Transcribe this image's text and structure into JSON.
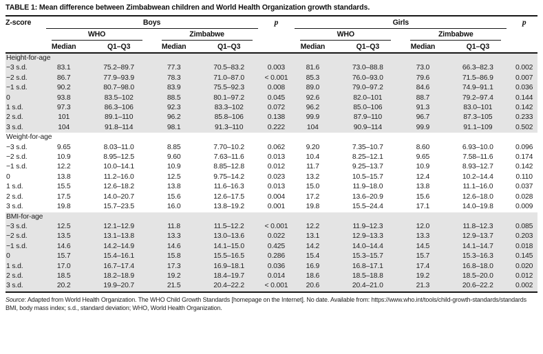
{
  "page": {
    "title": "TABLE 1: Mean difference between Zimbabwean children and World Health Organization growth standards."
  },
  "table": {
    "header": {
      "zscore_label": "Z-score",
      "boys_label": "Boys",
      "girls_label": "Girls",
      "p_label": "p",
      "who_label": "WHO",
      "zimbabwe_label": "Zimbabwe",
      "median_label": "Median",
      "q1q3_label": "Q1–Q3"
    },
    "sections": [
      {
        "label": "Height-for-age",
        "shaded": true,
        "rows": [
          {
            "z": "−3 s.d.",
            "cells": [
              "83.1",
              "75.2–89.7",
              "77.3",
              "70.5–83.2",
              "0.003",
              "81.6",
              "73.0–88.8",
              "73.0",
              "66.3–82.3",
              "0.002"
            ]
          },
          {
            "z": "−2 s.d.",
            "cells": [
              "86.7",
              "77.9–93.9",
              "78.3",
              "71.0–87.0",
              "< 0.001",
              "85.3",
              "76.0–93.0",
              "79.6",
              "71.5–86.9",
              "0.007"
            ]
          },
          {
            "z": "−1 s.d.",
            "cells": [
              "90.2",
              "80.7–98.0",
              "83.9",
              "75.5–92.3",
              "0.008",
              "89.0",
              "79.0–97.2",
              "84.6",
              "74.9–91.1",
              "0.036"
            ]
          },
          {
            "z": "0",
            "cells": [
              "93.8",
              "83.5–102",
              "88.5",
              "80.1–97.2",
              "0.045",
              "92.6",
              "82.0–101",
              "88.7",
              "79.2–97.4",
              "0.144"
            ]
          },
          {
            "z": "1 s.d.",
            "cells": [
              "97.3",
              "86.3–106",
              "92.3",
              "83.3–102",
              "0.072",
              "96.2",
              "85.0–106",
              "91.3",
              "83.0–101",
              "0.142"
            ]
          },
          {
            "z": "2 s.d.",
            "cells": [
              "101",
              "89.1–110",
              "96.2",
              "85.8–106",
              "0.138",
              "99.9",
              "87.9–110",
              "96.7",
              "87.3–105",
              "0.233"
            ]
          },
          {
            "z": "3 s.d.",
            "cells": [
              "104",
              "91.8–114",
              "98.1",
              "91.3–110",
              "0.222",
              "104",
              "90.9–114",
              "99.9",
              "91.1–109",
              "0.502"
            ]
          }
        ]
      },
      {
        "label": "Weight-for-age",
        "shaded": false,
        "rows": [
          {
            "z": "−3 s.d.",
            "cells": [
              "9.65",
              "8.03–11.0",
              "8.85",
              "7.70–10.2",
              "0.062",
              "9.20",
              "7.35–10.7",
              "8.60",
              "6.93–10.0",
              "0.096"
            ]
          },
          {
            "z": "−2 s.d.",
            "cells": [
              "10.9",
              "8.95–12.5",
              "9.60",
              "7.63–11.6",
              "0.013",
              "10.4",
              "8.25–12.1",
              "9.65",
              "7.58–11.6",
              "0.174"
            ]
          },
          {
            "z": "−1 s.d.",
            "cells": [
              "12.2",
              "10.0–14.1",
              "10.9",
              "8.85–12.8",
              "0.012",
              "11.7",
              "9.25–13.7",
              "10.9",
              "8.93–12.7",
              "0.142"
            ]
          },
          {
            "z": "0",
            "cells": [
              "13.8",
              "11.2–16.0",
              "12.5",
              "9.75–14.2",
              "0.023",
              "13.2",
              "10.5–15.7",
              "12.4",
              "10.2–14.4",
              "0.110"
            ]
          },
          {
            "z": "1 s.d.",
            "cells": [
              "15.5",
              "12.6–18.2",
              "13.8",
              "11.6–16.3",
              "0.013",
              "15.0",
              "11.9–18.0",
              "13.8",
              "11.1–16.0",
              "0.037"
            ]
          },
          {
            "z": "2 s.d.",
            "cells": [
              "17.5",
              "14.0–20.7",
              "15.6",
              "12.6–17.5",
              "0.004",
              "17.2",
              "13.6–20.9",
              "15.6",
              "12.6–18.0",
              "0.028"
            ]
          },
          {
            "z": "3 s.d.",
            "cells": [
              "19.8",
              "15.7–23.5",
              "16.0",
              "13.8–19.2",
              "0.001",
              "19.8",
              "15.5–24.4",
              "17.1",
              "14.0–19.8",
              "0.009"
            ]
          }
        ]
      },
      {
        "label": "BMI-for-age",
        "shaded": true,
        "rows": [
          {
            "z": "−3 s.d.",
            "cells": [
              "12.5",
              "12.1–12.9",
              "11.8",
              "11.5–12.2",
              "< 0.001",
              "12.2",
              "11.9–12.3",
              "12.0",
              "11.8–12.3",
              "0.085"
            ]
          },
          {
            "z": "−2 s.d.",
            "cells": [
              "13.5",
              "13.1–13.8",
              "13.3",
              "13.0–13.6",
              "0.022",
              "13.1",
              "12.9–13.3",
              "13.3",
              "12.9–13.7",
              "0.203"
            ]
          },
          {
            "z": "−1 s.d.",
            "cells": [
              "14.6",
              "14.2–14.9",
              "14.6",
              "14.1–15.0",
              "0.425",
              "14.2",
              "14.0–14.4",
              "14.5",
              "14.1–14.7",
              "0.018"
            ]
          },
          {
            "z": "0",
            "cells": [
              "15.7",
              "15.4–16.1",
              "15.8",
              "15.5–16.5",
              "0.286",
              "15.4",
              "15.3–15.7",
              "15.7",
              "15.3–16.3",
              "0.145"
            ]
          },
          {
            "z": "1 s.d.",
            "cells": [
              "17.0",
              "16.7–17.4",
              "17.3",
              "16.9–18.1",
              "0.036",
              "16.9",
              "16.8–17.1",
              "17.4",
              "16.8–18.0",
              "0.020"
            ]
          },
          {
            "z": "2 s.d.",
            "cells": [
              "18.5",
              "18.2–18.9",
              "19.2",
              "18.4–19.7",
              "0.014",
              "18.6",
              "18.5–18.8",
              "19.2",
              "18.5–20.0",
              "0.012"
            ]
          },
          {
            "z": "3 s.d.",
            "cells": [
              "20.2",
              "19.9–20.7",
              "21.5",
              "20.4–22.2",
              "< 0.001",
              "20.6",
              "20.4–21.0",
              "21.3",
              "20.6–22.2",
              "0.002"
            ]
          }
        ]
      }
    ]
  },
  "footnotes": {
    "source_label": "Source",
    "source_text": ": Adapted from World Health Organization. The WHO Child Growth Standards [homepage on the Internet]. No date. Available from: ",
    "source_url": "https://www.who.int/tools/child-growth-standards/standards",
    "abbreviations": "BMI, body mass index; s.d., standard deviation; WHO, World Health Organization."
  }
}
